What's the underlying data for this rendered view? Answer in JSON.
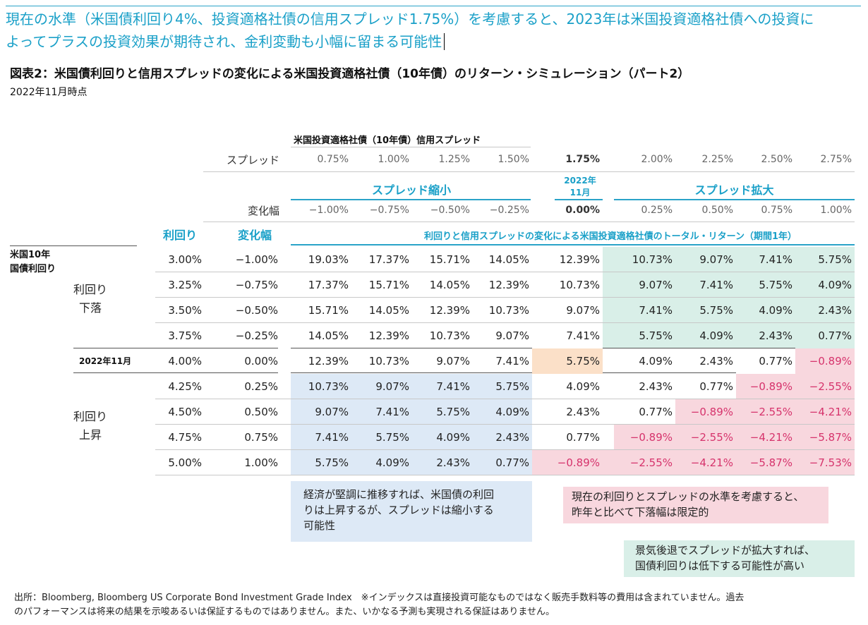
{
  "headline": {
    "line1": "現在の水準（米国債利回り4%、投資適格社債の信用スプレッド1.75%）を考慮すると、2023年は米国投資適格社債への投資に",
    "line2": "よってプラスの投資効果が期待され、金利変動も小幅に留まる可能性"
  },
  "figure": {
    "title": "図表2：米国債利回りと信用スプレッドの変化による米国投資適格社債（10年債）のリターン・シミュレーション（パート2）",
    "date": "2022年11月時点"
  },
  "table": {
    "spread_header_title": "米国投資適格社債（10年債）信用スプレッド",
    "spread_label": "スプレッド",
    "spreads": [
      "0.75%",
      "1.00%",
      "1.25%",
      "1.50%",
      "1.75%",
      "2.00%",
      "2.25%",
      "2.50%",
      "2.75%"
    ],
    "narrow_label": "スプレッド縮小",
    "current_col_label_line1": "2022年",
    "current_col_label_line2": "11月",
    "widen_label": "スプレッド拡大",
    "change_label": "変化幅",
    "spread_changes": [
      "−1.00%",
      "−0.75%",
      "−0.50%",
      "−0.25%",
      "0.00%",
      "0.25%",
      "0.50%",
      "0.75%",
      "1.00%"
    ],
    "yield_col_label": "利回り",
    "yield_change_col_label": "変化幅",
    "total_return_label": "利回りと信用スプレッドの変化による米国投資適格社債のトータル・リターン（期間1年）",
    "row_group_main_line1": "米国10年",
    "row_group_main_line2": "国債利回り",
    "group_fall_line1": "利回り",
    "group_fall_line2": "下落",
    "group_current": "2022年11月",
    "group_rise_line1": "利回り",
    "group_rise_line2": "上昇",
    "rows": [
      {
        "yield": "3.00%",
        "change": "−1.00%",
        "values": [
          "19.03%",
          "17.37%",
          "15.71%",
          "14.05%",
          "12.39%",
          "10.73%",
          "9.07%",
          "7.41%",
          "5.75%"
        ]
      },
      {
        "yield": "3.25%",
        "change": "−0.75%",
        "values": [
          "17.37%",
          "15.71%",
          "14.05%",
          "12.39%",
          "10.73%",
          "9.07%",
          "7.41%",
          "5.75%",
          "4.09%"
        ]
      },
      {
        "yield": "3.50%",
        "change": "−0.50%",
        "values": [
          "15.71%",
          "14.05%",
          "12.39%",
          "10.73%",
          "9.07%",
          "7.41%",
          "5.75%",
          "4.09%",
          "2.43%"
        ]
      },
      {
        "yield": "3.75%",
        "change": "−0.25%",
        "values": [
          "14.05%",
          "12.39%",
          "10.73%",
          "9.07%",
          "7.41%",
          "5.75%",
          "4.09%",
          "2.43%",
          "0.77%"
        ]
      },
      {
        "yield": "4.00%",
        "change": "0.00%",
        "values": [
          "12.39%",
          "10.73%",
          "9.07%",
          "7.41%",
          "5.75%",
          "4.09%",
          "2.43%",
          "0.77%",
          "−0.89%"
        ]
      },
      {
        "yield": "4.25%",
        "change": "0.25%",
        "values": [
          "10.73%",
          "9.07%",
          "7.41%",
          "5.75%",
          "4.09%",
          "2.43%",
          "0.77%",
          "−0.89%",
          "−2.55%"
        ]
      },
      {
        "yield": "4.50%",
        "change": "0.50%",
        "values": [
          "9.07%",
          "7.41%",
          "5.75%",
          "4.09%",
          "2.43%",
          "0.77%",
          "−0.89%",
          "−2.55%",
          "−4.21%"
        ]
      },
      {
        "yield": "4.75%",
        "change": "0.75%",
        "values": [
          "7.41%",
          "5.75%",
          "4.09%",
          "2.43%",
          "0.77%",
          "−0.89%",
          "−2.55%",
          "−4.21%",
          "−5.87%"
        ]
      },
      {
        "yield": "5.00%",
        "change": "1.00%",
        "values": [
          "5.75%",
          "4.09%",
          "2.43%",
          "0.77%",
          "−0.89%",
          "−2.55%",
          "−4.21%",
          "−5.87%",
          "−7.53%"
        ]
      }
    ]
  },
  "notes": {
    "blue_line1": "経済が堅調に推移すれば、米国債の利回",
    "blue_line2": "りは上昇するが、スプレッドは縮小する",
    "blue_line3": "可能性",
    "pink_line1": "現在の利回りとスプレッドの水準を考慮すると、",
    "pink_line2": "昨年と比べて下落幅は限定的",
    "green_line1": "景気後退でスプレッドが拡大すれば、",
    "green_line2": "国債利回りは低下する可能性が高い"
  },
  "footer": {
    "line1": "出所：Bloomberg, Bloomberg US Corporate Bond Investment Grade Index　※インデックスは直接投資可能なものではなく販売手数料等の費用は含まれていません。過去",
    "line2": "のパフォーマンスは将来の結果を示唆あるいは保証するものではありません。また、いかなる予測も実現される保証はありません。"
  },
  "colors": {
    "accent": "#1aa0c8",
    "blue_zone": "#dde9f6",
    "green_zone": "#d9efe8",
    "pink_zone": "#f8d7de",
    "current_cell": "#fbe0c8",
    "negative": "#d6336c"
  }
}
